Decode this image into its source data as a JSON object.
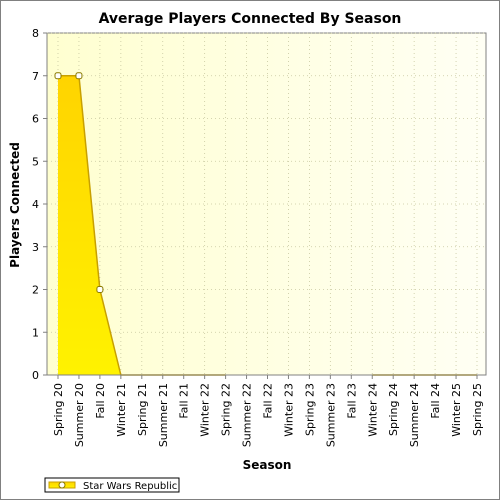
{
  "chart_data": {
    "type": "area",
    "title": "Average Players Connected By Season",
    "xlabel": "Season",
    "ylabel": "Players Connected",
    "categories": [
      "Spring 20",
      "Summer 20",
      "Fall 20",
      "Winter 21",
      "Spring 21",
      "Summer 21",
      "Fall 21",
      "Winter 22",
      "Spring 22",
      "Summer 22",
      "Fall 22",
      "Winter 23",
      "Spring 23",
      "Summer 23",
      "Fall 23",
      "Winter 24",
      "Spring 24",
      "Summer 24",
      "Fall 24",
      "Winter 25",
      "Spring 25"
    ],
    "ylim": [
      0,
      8
    ],
    "yticks": [
      0,
      1,
      2,
      3,
      4,
      5,
      6,
      7,
      8
    ],
    "grid": true,
    "legend_position": "bottom-left",
    "series": [
      {
        "name": "Star Wars Republic",
        "values": [
          7,
          7,
          2,
          0,
          0,
          0,
          0,
          0,
          0,
          null,
          null,
          null,
          null,
          null,
          null,
          0,
          0,
          0,
          0,
          0,
          0
        ],
        "markers": [
          true,
          true,
          true,
          false,
          false,
          false,
          false,
          false,
          false,
          false,
          false,
          false,
          false,
          false,
          false,
          false,
          false,
          false,
          false,
          false,
          false
        ]
      }
    ],
    "colors": {
      "plot_background": "#ffffdf",
      "area_fill_top": "#ffd400",
      "area_fill_bottom": "#fff200",
      "line": "#c8a000",
      "grid": "#c8c8a0",
      "marker_fill": "#ffffff"
    }
  }
}
